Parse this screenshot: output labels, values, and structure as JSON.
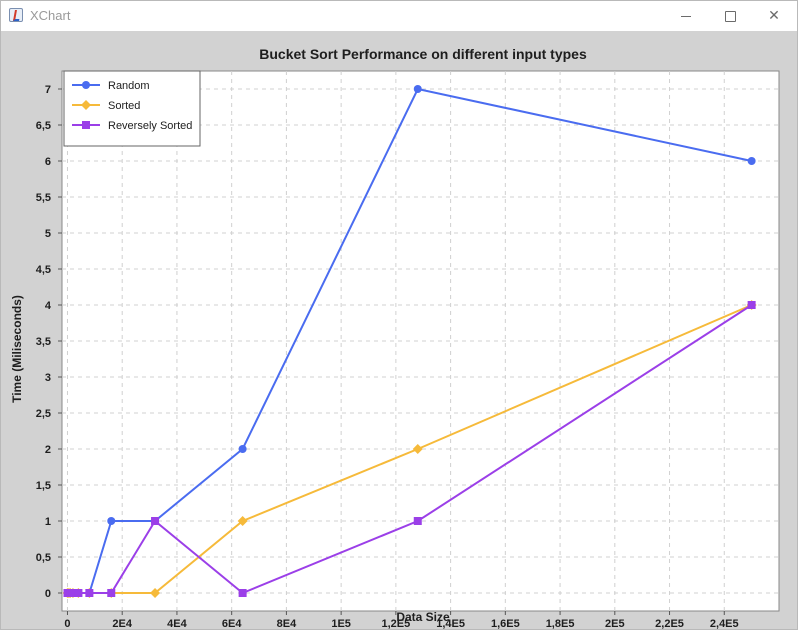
{
  "window": {
    "title": "XChart",
    "icon": "java-app-icon",
    "controls": [
      "minimize-icon",
      "maximize-icon",
      "close-icon"
    ]
  },
  "chart_data": {
    "type": "line",
    "title": "Bucket Sort Performance on different input types",
    "xlabel": "Data Size",
    "ylabel": "Time (Miliseconds)",
    "xlim": [
      -2000,
      260000
    ],
    "ylim": [
      -0.25,
      7.25
    ],
    "x_ticks": [
      0,
      20000,
      40000,
      60000,
      80000,
      100000,
      120000,
      140000,
      160000,
      180000,
      200000,
      220000,
      240000
    ],
    "x_tick_labels": [
      "0",
      "2E4",
      "4E4",
      "6E4",
      "8E4",
      "1E5",
      "1,2E5",
      "1,4E5",
      "1,6E5",
      "1,8E5",
      "2E5",
      "2,2E5",
      "2,4E5"
    ],
    "y_ticks": [
      0,
      0.5,
      1,
      1.5,
      2,
      2.5,
      3,
      3.5,
      4,
      4.5,
      5,
      5.5,
      6,
      6.5,
      7
    ],
    "y_tick_labels": [
      "0",
      "0,5",
      "1",
      "1,5",
      "2",
      "2,5",
      "3",
      "3,5",
      "4",
      "4,5",
      "5",
      "5,5",
      "6",
      "6,5",
      "7"
    ],
    "grid": true,
    "legend_position": "top-left",
    "x": [
      0,
      500,
      1000,
      2000,
      4000,
      8000,
      16000,
      32000,
      64000,
      128000,
      250000
    ],
    "series": [
      {
        "name": "Random",
        "color": "#4a6cf0",
        "marker": "circle",
        "values": [
          0,
          0,
          0,
          0,
          0,
          0,
          1,
          1,
          2,
          7,
          6
        ]
      },
      {
        "name": "Sorted",
        "color": "#f6ba3a",
        "marker": "diamond",
        "values": [
          0,
          0,
          0,
          0,
          0,
          0,
          0,
          0,
          1,
          2,
          4
        ]
      },
      {
        "name": "Reversely Sorted",
        "color": "#9b3fe8",
        "marker": "square",
        "values": [
          0,
          0,
          0,
          0,
          0,
          0,
          0,
          1,
          0,
          1,
          4
        ]
      }
    ]
  }
}
